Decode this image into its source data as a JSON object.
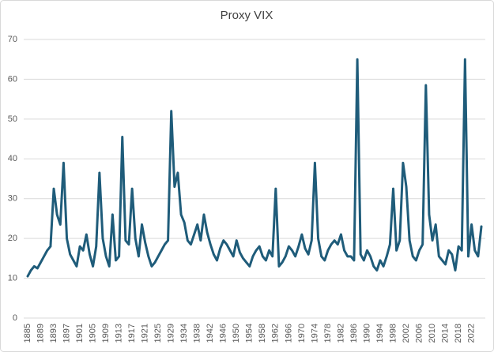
{
  "chart_data": {
    "type": "line",
    "title": "Proxy VIX",
    "categories": [
      "1885",
      null,
      null,
      null,
      "1889",
      null,
      null,
      null,
      "1893",
      null,
      null,
      null,
      "1897",
      null,
      null,
      null,
      "1901",
      null,
      null,
      null,
      "1905",
      null,
      null,
      null,
      "1909",
      null,
      null,
      null,
      "1913",
      null,
      null,
      null,
      "1917",
      null,
      null,
      null,
      "1921",
      null,
      null,
      null,
      "1925",
      null,
      null,
      null,
      "1929",
      null,
      null,
      null,
      "1934",
      null,
      null,
      null,
      "1938",
      null,
      null,
      null,
      "1942",
      null,
      null,
      null,
      "1946",
      null,
      null,
      null,
      "1950",
      null,
      null,
      null,
      "1954",
      null,
      null,
      null,
      "1958",
      null,
      null,
      null,
      "1962",
      null,
      null,
      null,
      "1966",
      null,
      null,
      null,
      "1970",
      null,
      null,
      null,
      "1974",
      null,
      null,
      null,
      "1978",
      null,
      null,
      null,
      "1982",
      null,
      null,
      null,
      "1986",
      null,
      null,
      null,
      "1990",
      null,
      null,
      null,
      "1994",
      null,
      null,
      null,
      "1998",
      null,
      null,
      null,
      "2002",
      null,
      null,
      null,
      "2006",
      null,
      null,
      null,
      "2010",
      null,
      null,
      null,
      "2014",
      null,
      null,
      null,
      "2018",
      null,
      null,
      null,
      "2022",
      null,
      null,
      null
    ],
    "values": [
      10.5,
      12,
      13,
      12.5,
      14,
      15.5,
      17,
      18,
      32.5,
      26,
      23.5,
      39,
      20,
      16,
      14.5,
      13,
      18,
      17,
      21,
      16,
      13,
      18,
      36.5,
      20,
      15.5,
      13,
      26,
      14.5,
      15.5,
      45.5,
      19.5,
      18.5,
      32.5,
      20,
      15.5,
      23.5,
      19,
      15.5,
      13,
      14,
      15.5,
      17,
      18.5,
      19.5,
      52,
      33,
      36.5,
      26,
      24,
      19.5,
      18.5,
      21,
      23.5,
      19.5,
      26,
      21.5,
      18.5,
      16,
      14.5,
      17.5,
      19.5,
      18.5,
      17,
      15.5,
      19.5,
      16.5,
      15,
      14,
      13,
      15.5,
      17,
      18,
      15.5,
      14.5,
      17,
      15.5,
      32.5,
      13,
      14,
      15.5,
      18,
      17,
      15.5,
      18,
      21,
      17.5,
      16,
      19.5,
      39,
      20,
      15.5,
      14.5,
      17,
      18.5,
      19.5,
      18.5,
      21,
      17,
      15.5,
      15.5,
      14.5,
      65,
      16,
      14.5,
      17,
      15.5,
      13,
      12,
      14.5,
      13,
      15.5,
      18.5,
      32.5,
      17,
      19.5,
      39,
      33,
      19.5,
      15.5,
      14.5,
      17,
      18.5,
      58.5,
      26,
      19.5,
      23.5,
      15.5,
      14.5,
      13.5,
      17,
      16,
      12,
      18,
      17,
      65,
      15.5,
      23.5,
      17,
      15.5,
      23
    ],
    "color": "#1f5c7a",
    "ylim": [
      0,
      70
    ],
    "yticks": [
      0,
      10,
      20,
      30,
      40,
      50,
      60,
      70
    ],
    "grid": true
  }
}
